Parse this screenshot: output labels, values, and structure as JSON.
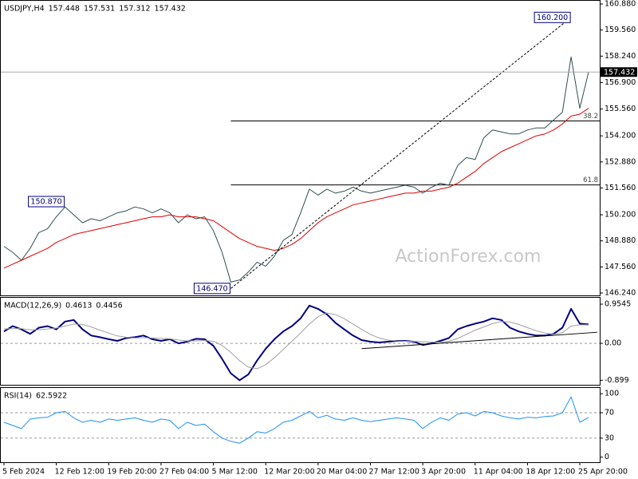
{
  "chart_data": [
    {
      "type": "line",
      "title": "USDJPY,H4",
      "ohlc": [
        157.448,
        157.531,
        157.312,
        157.432
      ],
      "watermark": "ActionForex.com",
      "grid": false,
      "ylim": [
        146.24,
        160.88
      ],
      "yticks": [
        {
          "value": 160.88,
          "label": "160.880"
        },
        {
          "value": 159.56,
          "label": "159.560"
        },
        {
          "value": 158.24,
          "label": "158.240"
        },
        {
          "value": 156.9,
          "label": "156.900"
        },
        {
          "value": 155.56,
          "label": "155.560"
        },
        {
          "value": 154.2,
          "label": "154.200"
        },
        {
          "value": 152.88,
          "label": "152.880"
        },
        {
          "value": 151.56,
          "label": "151.560"
        },
        {
          "value": 150.2,
          "label": "150.200"
        },
        {
          "value": 148.88,
          "label": "148.880"
        },
        {
          "value": 147.56,
          "label": "147.560"
        },
        {
          "value": 146.24,
          "label": "146.240"
        }
      ],
      "series": [
        {
          "color": "#2f4f4f",
          "values": [
            148.6,
            148.3,
            147.9,
            148.5,
            149.3,
            149.5,
            150.1,
            150.6,
            150.2,
            149.8,
            150.0,
            149.9,
            150.1,
            150.3,
            150.4,
            150.6,
            150.5,
            150.3,
            150.5,
            150.3,
            149.8,
            150.2,
            150.0,
            150.1,
            149.4,
            148.3,
            146.8,
            146.9,
            147.3,
            147.8,
            147.6,
            148.1,
            148.9,
            149.2,
            150.3,
            151.5,
            151.2,
            151.5,
            151.3,
            151.4,
            151.6,
            151.4,
            151.3,
            151.4,
            151.5,
            151.6,
            151.7,
            151.6,
            151.3,
            151.6,
            151.8,
            151.7,
            152.7,
            153.1,
            153.0,
            154.1,
            154.5,
            154.4,
            154.3,
            154.3,
            154.5,
            154.6,
            154.6,
            155.0,
            155.4,
            158.2,
            155.6,
            157.43
          ]
        },
        {
          "color": "#e00000",
          "values": [
            147.5,
            147.7,
            147.9,
            148.1,
            148.3,
            148.5,
            148.8,
            149.0,
            149.2,
            149.3,
            149.4,
            149.5,
            149.6,
            149.7,
            149.8,
            149.9,
            150.0,
            150.1,
            150.1,
            150.2,
            150.1,
            150.1,
            150.1,
            150.0,
            149.9,
            149.6,
            149.3,
            149.0,
            148.8,
            148.6,
            148.5,
            148.4,
            148.5,
            148.7,
            149.0,
            149.4,
            149.8,
            150.1,
            150.3,
            150.5,
            150.7,
            150.8,
            150.9,
            151.0,
            151.1,
            151.2,
            151.3,
            151.3,
            151.4,
            151.4,
            151.5,
            151.6,
            151.8,
            152.1,
            152.4,
            152.8,
            153.1,
            153.4,
            153.6,
            153.8,
            154.0,
            154.2,
            154.3,
            154.5,
            154.8,
            155.2,
            155.3,
            155.6
          ]
        }
      ],
      "annotations": [
        {
          "value": 150.87,
          "label": "150.870",
          "x": 7
        },
        {
          "value": 146.47,
          "label": "146.470",
          "x": 26
        },
        {
          "value": 160.2,
          "label": "160.200",
          "x": 65
        }
      ],
      "fib": [
        {
          "ratio": 38.2,
          "value": 154.955
        },
        {
          "ratio": 61.8,
          "value": 151.715
        }
      ]
    },
    {
      "type": "line",
      "title": "MACD(12,26,9)",
      "readout": [
        0.4613,
        0.4456
      ],
      "grid": true,
      "ylim": [
        -1.01,
        1.11
      ],
      "yticks": [
        0.9545,
        {
          "value": 0,
          "label": "0.00"
        },
        -0.899
      ],
      "series": [
        {
          "color": "#000080",
          "width": 2,
          "values": [
            0.29,
            0.42,
            0.34,
            0.23,
            0.38,
            0.42,
            0.34,
            0.53,
            0.57,
            0.34,
            0.19,
            0.15,
            0.1,
            0.06,
            0.13,
            0.15,
            0.19,
            0.1,
            0.06,
            0.1,
            0.0,
            0.04,
            0.11,
            0.1,
            -0.06,
            -0.38,
            -0.73,
            -0.9,
            -0.76,
            -0.42,
            -0.13,
            0.1,
            0.29,
            0.42,
            0.61,
            0.92,
            0.84,
            0.71,
            0.5,
            0.34,
            0.19,
            0.08,
            0.04,
            0.02,
            0.04,
            0.06,
            0.06,
            0.04,
            -0.04,
            0.0,
            0.06,
            0.13,
            0.34,
            0.42,
            0.48,
            0.53,
            0.61,
            0.57,
            0.38,
            0.29,
            0.23,
            0.19,
            0.19,
            0.23,
            0.38,
            0.84,
            0.48,
            0.46
          ]
        },
        {
          "color": "#a0a0a0",
          "width": 1,
          "values": [
            0.35,
            0.36,
            0.36,
            0.33,
            0.33,
            0.35,
            0.37,
            0.42,
            0.47,
            0.46,
            0.4,
            0.32,
            0.25,
            0.18,
            0.15,
            0.13,
            0.14,
            0.13,
            0.12,
            0.11,
            0.08,
            0.06,
            0.06,
            0.07,
            0.05,
            -0.05,
            -0.22,
            -0.42,
            -0.58,
            -0.62,
            -0.52,
            -0.35,
            -0.15,
            0.05,
            0.25,
            0.47,
            0.65,
            0.74,
            0.7,
            0.6,
            0.47,
            0.34,
            0.22,
            0.13,
            0.08,
            0.06,
            0.05,
            0.05,
            0.04,
            0.03,
            0.03,
            0.05,
            0.12,
            0.22,
            0.32,
            0.4,
            0.48,
            0.53,
            0.52,
            0.46,
            0.38,
            0.31,
            0.25,
            0.22,
            0.26,
            0.42,
            0.45,
            0.45
          ]
        }
      ],
      "trendline": {
        "x": [
          41,
          68
        ],
        "y": [
          -0.13,
          0.27
        ]
      }
    },
    {
      "type": "line",
      "title": "RSI(14)",
      "readout": [
        62.5922
      ],
      "grid": true,
      "ylim": [
        -8,
        109
      ],
      "yticks": [
        100,
        70,
        30,
        0
      ],
      "series": [
        {
          "color": "#1e90ff",
          "width": 1,
          "values": [
            55,
            50,
            45,
            60,
            62,
            63,
            70,
            72,
            62,
            55,
            58,
            55,
            60,
            58,
            60,
            62,
            58,
            55,
            60,
            58,
            45,
            55,
            50,
            52,
            40,
            30,
            25,
            22,
            30,
            40,
            38,
            45,
            55,
            58,
            65,
            72,
            62,
            66,
            60,
            58,
            62,
            58,
            56,
            58,
            60,
            62,
            60,
            58,
            45,
            55,
            62,
            58,
            68,
            70,
            65,
            72,
            70,
            65,
            62,
            60,
            63,
            62,
            64,
            65,
            70,
            95,
            55,
            62.6
          ]
        }
      ],
      "categories": [
        "5 Feb 2024",
        null,
        null,
        null,
        null,
        null,
        "12 Feb 12:00",
        null,
        null,
        null,
        null,
        null,
        "19 Feb 20:00",
        null,
        null,
        null,
        null,
        null,
        "27 Feb 04:00",
        null,
        null,
        null,
        null,
        null,
        "5 Mar 12:00",
        null,
        null,
        null,
        null,
        null,
        "12 Mar 20:00",
        null,
        null,
        null,
        null,
        null,
        "20 Mar 04:00",
        null,
        null,
        null,
        null,
        null,
        "27 Mar 12:00",
        null,
        null,
        null,
        null,
        null,
        "3 Apr 20:00",
        null,
        null,
        null,
        null,
        null,
        "11 Apr 04:00",
        null,
        null,
        null,
        null,
        null,
        "18 Apr 12:00",
        null,
        null,
        null,
        null,
        null,
        "25 Apr 20:00",
        null
      ]
    }
  ]
}
